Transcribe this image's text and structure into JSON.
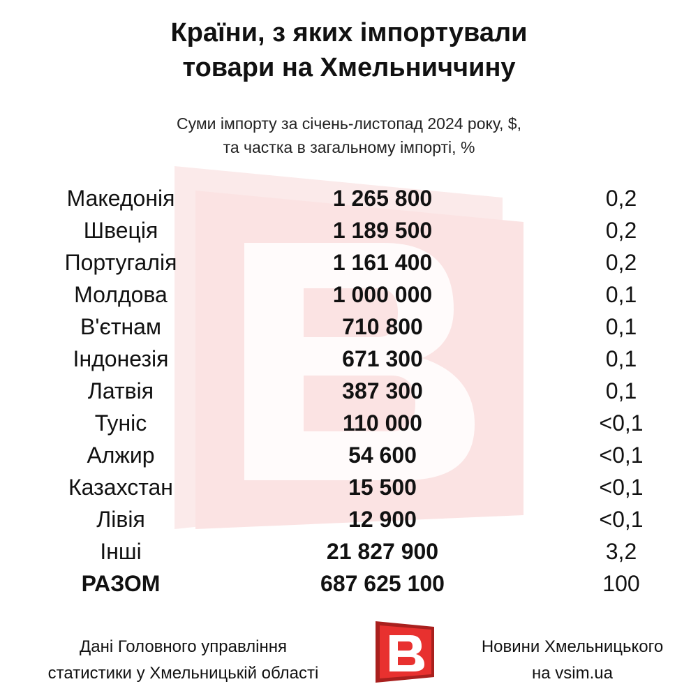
{
  "title": {
    "line1": "Країни, з яких імпортували",
    "line2": "товари на Хмельниччину"
  },
  "subtitle": {
    "line1": "Суми імпорту за січень-листопад 2024 року, $,",
    "line2": "та частка в загальному імпорті, %"
  },
  "table": {
    "rows": [
      {
        "country": "Македонія",
        "amount": "1 265 800",
        "share": "0,2"
      },
      {
        "country": "Швеція",
        "amount": "1 189 500",
        "share": "0,2"
      },
      {
        "country": "Португалія",
        "amount": "1 161 400",
        "share": "0,2"
      },
      {
        "country": "Молдова",
        "amount": "1 000 000",
        "share": "0,1"
      },
      {
        "country": "В'єтнам",
        "amount": "710 800",
        "share": "0,1"
      },
      {
        "country": "Індонезія",
        "amount": "671 300",
        "share": "0,1"
      },
      {
        "country": "Латвія",
        "amount": "387 300",
        "share": "0,1"
      },
      {
        "country": "Туніс",
        "amount": "110 000",
        "share": "<0,1"
      },
      {
        "country": "Алжир",
        "amount": "54 600",
        "share": "<0,1"
      },
      {
        "country": "Казахстан",
        "amount": "15 500",
        "share": "<0,1"
      },
      {
        "country": "Лівія",
        "amount": "12 900",
        "share": "<0,1"
      },
      {
        "country": "Інші",
        "amount": "21 827 900",
        "share": "3,2"
      }
    ],
    "total": {
      "country": "РАЗОМ",
      "amount": "687 625 100",
      "share": "100"
    }
  },
  "footer": {
    "source_line1": "Дані Головного управління",
    "source_line2": "статистики у Хмельницькій області",
    "brand_line1": "Новини Хмельницького",
    "brand_line2": "на vsim.ua"
  },
  "logo": {
    "icon": "vsim-logo-icon"
  },
  "watermark": {
    "icon": "vsim-watermark-icon"
  },
  "colors": {
    "brand_red": "#e8312f",
    "brand_red_dark": "#a9201e",
    "watermark_tint": "#fbe9e9"
  }
}
